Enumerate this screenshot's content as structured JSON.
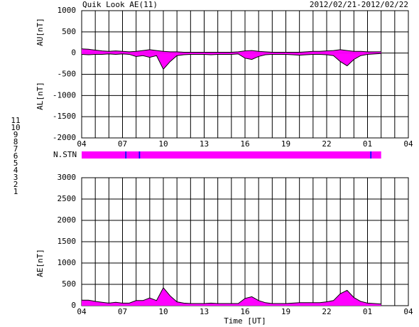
{
  "header": {
    "title": "Quik Look AE(11)",
    "date": "2012/02/21-2012/02/22"
  },
  "stations": {
    "label": "N.STN",
    "legend": [
      {
        "label": "11",
        "color": "#00e0e0"
      },
      {
        "label": "10",
        "color": "#ff00ff"
      },
      {
        "label": "9",
        "color": "#0000ff"
      },
      {
        "label": "8",
        "color": "#e8e880"
      },
      {
        "label": "7",
        "color": "#c8e000"
      },
      {
        "label": "6",
        "color": "#ff0000"
      },
      {
        "label": "5",
        "color": "#c8c8c8"
      },
      {
        "label": "4",
        "color": "#909090"
      },
      {
        "label": "3",
        "color": "#008080"
      },
      {
        "label": "2",
        "color": "#800080"
      },
      {
        "label": "1",
        "color": "#0000c0"
      }
    ],
    "segments": [
      {
        "start": 0,
        "end": 3.2,
        "count": 10,
        "color": "#ff00ff"
      },
      {
        "start": 3.2,
        "end": 3.3,
        "count": 9,
        "color": "#0000ff"
      },
      {
        "start": 3.3,
        "end": 4.2,
        "count": 10,
        "color": "#ff00ff"
      },
      {
        "start": 4.2,
        "end": 4.3,
        "count": 9,
        "color": "#0000ff"
      },
      {
        "start": 4.3,
        "end": 21.2,
        "count": 10,
        "color": "#ff00ff"
      },
      {
        "start": 21.2,
        "end": 21.3,
        "count": 9,
        "color": "#0000ff"
      },
      {
        "start": 21.3,
        "end": 22,
        "count": 10,
        "color": "#ff00ff"
      }
    ]
  },
  "chart_data": [
    {
      "type": "area",
      "x": [
        0,
        0.5,
        1,
        1.5,
        2,
        2.5,
        3,
        3.5,
        4,
        4.5,
        5,
        5.5,
        6,
        6.5,
        7,
        7.5,
        8,
        8.5,
        9,
        9.5,
        10,
        10.5,
        11,
        11.5,
        12,
        12.5,
        13,
        13.5,
        14,
        14.5,
        15,
        15.5,
        16,
        16.5,
        17,
        17.5,
        18,
        18.5,
        19,
        19.5,
        20,
        20.5,
        21,
        21.5,
        22
      ],
      "series": [
        {
          "name": "AU[nT]",
          "color": "#ff00ff",
          "values": [
            100,
            90,
            70,
            50,
            40,
            50,
            40,
            30,
            40,
            60,
            80,
            60,
            40,
            30,
            30,
            20,
            20,
            20,
            20,
            20,
            20,
            20,
            20,
            30,
            50,
            60,
            40,
            30,
            20,
            20,
            20,
            20,
            20,
            30,
            40,
            40,
            50,
            60,
            80,
            60,
            40,
            40,
            30,
            30,
            30
          ]
        },
        {
          "name": "AL[nT]",
          "color": "#ff00ff",
          "values": [
            -30,
            -40,
            -30,
            -30,
            -20,
            -30,
            -20,
            -30,
            -80,
            -60,
            -100,
            -60,
            -380,
            -200,
            -60,
            -40,
            -30,
            -30,
            -30,
            -40,
            -30,
            -30,
            -30,
            -20,
            -120,
            -150,
            -80,
            -40,
            -30,
            -30,
            -30,
            -40,
            -50,
            -40,
            -30,
            -30,
            -40,
            -60,
            -200,
            -300,
            -150,
            -60,
            -30,
            -20,
            -10
          ]
        }
      ],
      "xlim": [
        0,
        24
      ],
      "xticks": [
        {
          "value": 0,
          "label": "04"
        },
        {
          "value": 3,
          "label": "07"
        },
        {
          "value": 6,
          "label": "10"
        },
        {
          "value": 9,
          "label": "13"
        },
        {
          "value": 12,
          "label": "16"
        },
        {
          "value": 15,
          "label": "19"
        },
        {
          "value": 18,
          "label": "22"
        },
        {
          "value": 21,
          "label": "01"
        },
        {
          "value": 24,
          "label": "04"
        }
      ],
      "xgrid": [
        0,
        1,
        2,
        3,
        4,
        5,
        6,
        7,
        8,
        9,
        10,
        11,
        12,
        13,
        14,
        15,
        16,
        17,
        18,
        19,
        20,
        21,
        22,
        23,
        24
      ],
      "ylim": [
        -2000,
        1000
      ],
      "yticks": [
        -2000,
        -1500,
        -1000,
        -500,
        0,
        500,
        1000
      ],
      "grid": true
    },
    {
      "type": "area",
      "xlabel": "Time [UT]",
      "x": [
        0,
        0.5,
        1,
        1.5,
        2,
        2.5,
        3,
        3.5,
        4,
        4.5,
        5,
        5.5,
        6,
        6.5,
        7,
        7.5,
        8,
        8.5,
        9,
        9.5,
        10,
        10.5,
        11,
        11.5,
        12,
        12.5,
        13,
        13.5,
        14,
        14.5,
        15,
        15.5,
        16,
        16.5,
        17,
        17.5,
        18,
        18.5,
        19,
        19.5,
        20,
        20.5,
        21,
        21.5,
        22
      ],
      "series": [
        {
          "name": "AE[nT]",
          "color": "#ff00ff",
          "values": [
            130,
            130,
            100,
            80,
            60,
            80,
            60,
            60,
            120,
            120,
            180,
            120,
            420,
            230,
            90,
            60,
            50,
            50,
            50,
            60,
            50,
            50,
            50,
            50,
            170,
            210,
            120,
            70,
            50,
            50,
            50,
            60,
            70,
            70,
            70,
            70,
            90,
            120,
            280,
            360,
            190,
            100,
            60,
            50,
            40
          ]
        }
      ],
      "xlim": [
        0,
        24
      ],
      "xticks": [
        {
          "value": 0,
          "label": "04"
        },
        {
          "value": 3,
          "label": "07"
        },
        {
          "value": 6,
          "label": "10"
        },
        {
          "value": 9,
          "label": "13"
        },
        {
          "value": 12,
          "label": "16"
        },
        {
          "value": 15,
          "label": "19"
        },
        {
          "value": 18,
          "label": "22"
        },
        {
          "value": 21,
          "label": "01"
        },
        {
          "value": 24,
          "label": "04"
        }
      ],
      "xgrid": [
        0,
        1,
        2,
        3,
        4,
        5,
        6,
        7,
        8,
        9,
        10,
        11,
        12,
        13,
        14,
        15,
        16,
        17,
        18,
        19,
        20,
        21,
        22,
        23,
        24
      ],
      "ylim": [
        0,
        3000
      ],
      "yticks": [
        0,
        500,
        1000,
        1500,
        2000,
        2500,
        3000
      ],
      "grid": true
    }
  ]
}
